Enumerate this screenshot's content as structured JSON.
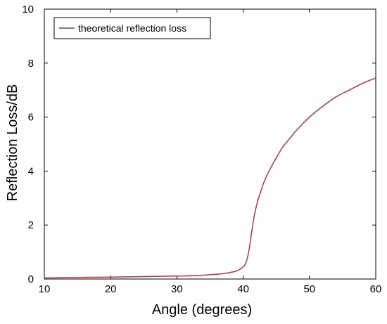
{
  "chart_data": {
    "type": "line",
    "title": "",
    "xlabel": "Angle (degrees)",
    "ylabel": "Reflection Loss/dB",
    "xlim": [
      10,
      60
    ],
    "ylim": [
      0,
      10
    ],
    "xticks": [
      10,
      20,
      30,
      40,
      50,
      60
    ],
    "yticks": [
      0,
      2,
      4,
      6,
      8,
      10
    ],
    "grid": false,
    "legend_position": "top-left",
    "series": [
      {
        "name": "theoretical reflection loss",
        "color": "#e8203a",
        "dash_color": "#5a6a6a",
        "style": "dashed",
        "x": [
          10,
          15,
          20,
          25,
          30,
          33,
          35,
          37,
          38,
          39,
          39.5,
          40,
          40.3,
          40.6,
          40.9,
          41.2,
          41.5,
          41.8,
          42.2,
          42.6,
          43,
          43.5,
          44,
          45,
          46,
          47,
          48,
          50,
          52,
          54,
          56,
          58,
          60
        ],
        "values": [
          0.04,
          0.06,
          0.07,
          0.09,
          0.11,
          0.13,
          0.16,
          0.2,
          0.24,
          0.3,
          0.36,
          0.45,
          0.55,
          0.75,
          1.1,
          1.6,
          2.1,
          2.5,
          2.9,
          3.2,
          3.5,
          3.8,
          4.05,
          4.5,
          4.9,
          5.2,
          5.5,
          6.0,
          6.4,
          6.75,
          7.0,
          7.25,
          7.45
        ]
      }
    ]
  }
}
